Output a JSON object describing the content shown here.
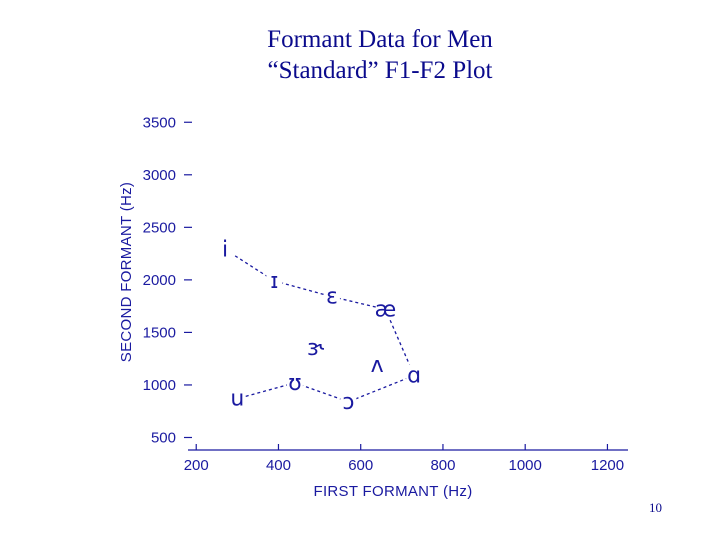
{
  "slide": {
    "title_line1": "Formant Data for Men",
    "title_line2": "“Standard” F1-F2 Plot",
    "page_number": "10"
  },
  "chart_data": {
    "type": "scatter",
    "xlabel": "FIRST FORMANT (Hz)",
    "ylabel": "SECOND FORMANT (Hz)",
    "xlim": [
      180,
      1250
    ],
    "ylim": [
      400,
      3550
    ],
    "xticks": [
      200,
      400,
      600,
      800,
      1000,
      1200
    ],
    "yticks": [
      500,
      1000,
      1500,
      2000,
      2500,
      3000,
      3500
    ],
    "grid": false,
    "points": [
      {
        "label": "i",
        "f1": 270,
        "f2": 2290
      },
      {
        "label": "ɪ",
        "f1": 390,
        "f2": 1990
      },
      {
        "label": "ɛ",
        "f1": 530,
        "f2": 1840
      },
      {
        "label": "æ",
        "f1": 660,
        "f2": 1720
      },
      {
        "label": "ɑ",
        "f1": 730,
        "f2": 1090
      },
      {
        "label": "ɔ",
        "f1": 570,
        "f2": 840
      },
      {
        "label": "ʊ",
        "f1": 440,
        "f2": 1020
      },
      {
        "label": "u",
        "f1": 300,
        "f2": 870
      },
      {
        "label": "ʌ",
        "f1": 640,
        "f2": 1190
      },
      {
        "label": "ɝ",
        "f1": 490,
        "f2": 1350
      }
    ],
    "polygon": [
      "i",
      "ɪ",
      "ɛ",
      "æ",
      "ɑ",
      "ɔ",
      "ʊ",
      "u"
    ],
    "colors": {
      "ink": "#1a1aa0",
      "title": "#0a0a8c"
    }
  }
}
